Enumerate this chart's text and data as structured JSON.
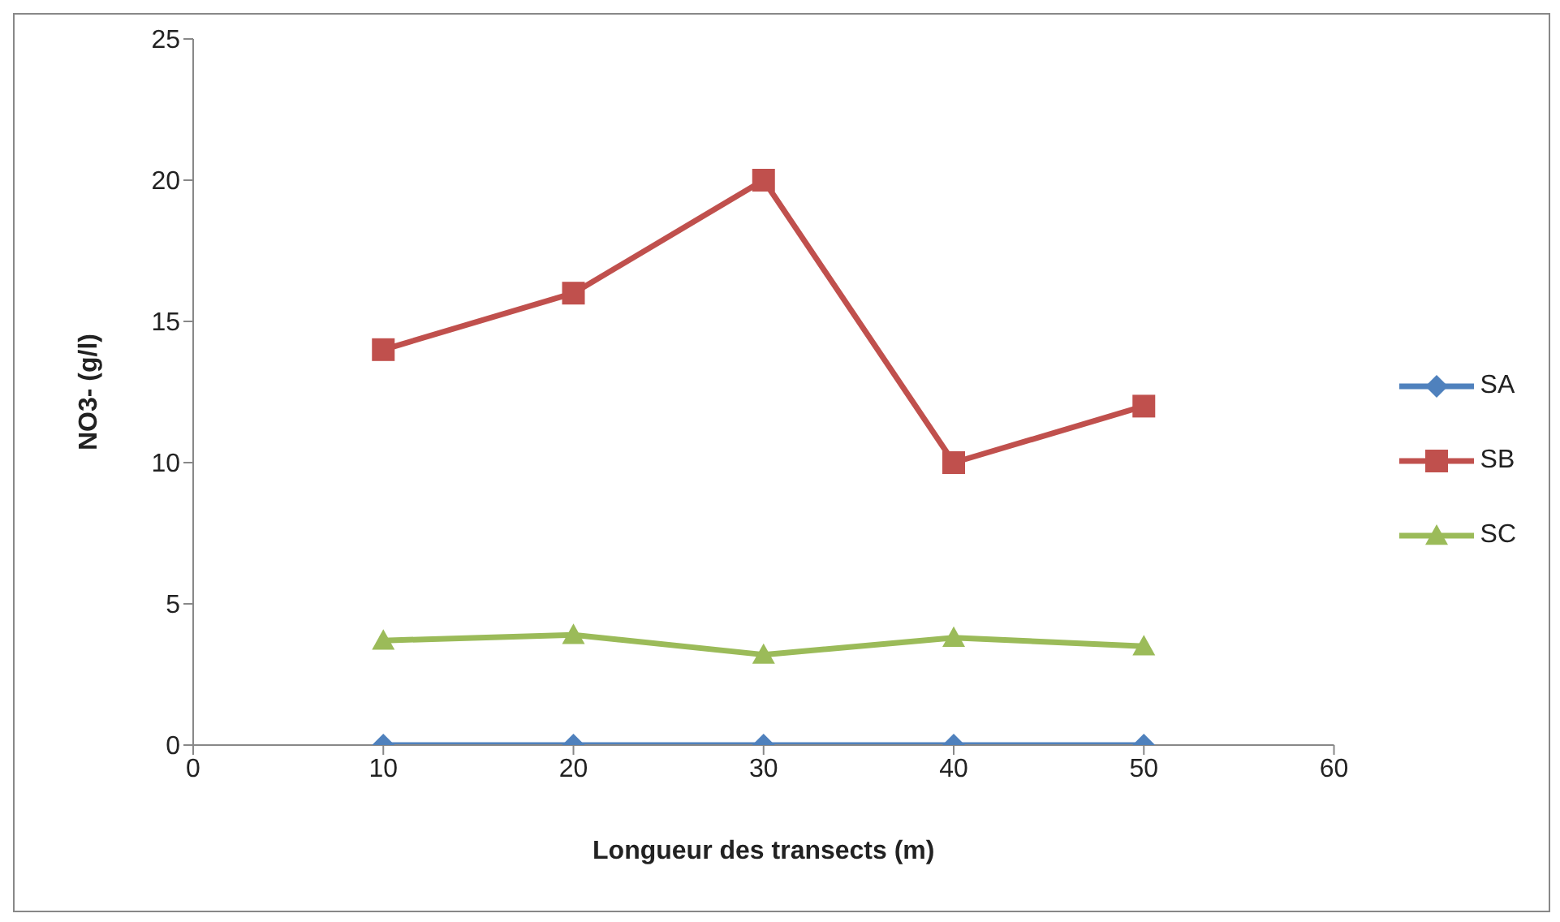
{
  "chart_data": {
    "type": "line",
    "xlabel": "Longueur des transects (m)",
    "ylabel": "NO3- (g/l)",
    "x": [
      10,
      20,
      30,
      40,
      50
    ],
    "xlim": [
      0,
      60
    ],
    "xticks": [
      0,
      10,
      20,
      30,
      40,
      50,
      60
    ],
    "ylim": [
      0,
      25
    ],
    "yticks": [
      0,
      5,
      10,
      15,
      20,
      25
    ],
    "grid": false,
    "legend": "right",
    "series": [
      {
        "name": "SA",
        "color": "#4f81bd",
        "marker": "diamond",
        "values": [
          0,
          0,
          0,
          0,
          0
        ]
      },
      {
        "name": "SB",
        "color": "#c0504d",
        "marker": "square",
        "values": [
          14,
          16,
          20,
          10,
          12
        ]
      },
      {
        "name": "SC",
        "color": "#9bbb59",
        "marker": "triangle",
        "values": [
          3.7,
          3.9,
          3.2,
          3.8,
          3.5
        ]
      }
    ]
  }
}
